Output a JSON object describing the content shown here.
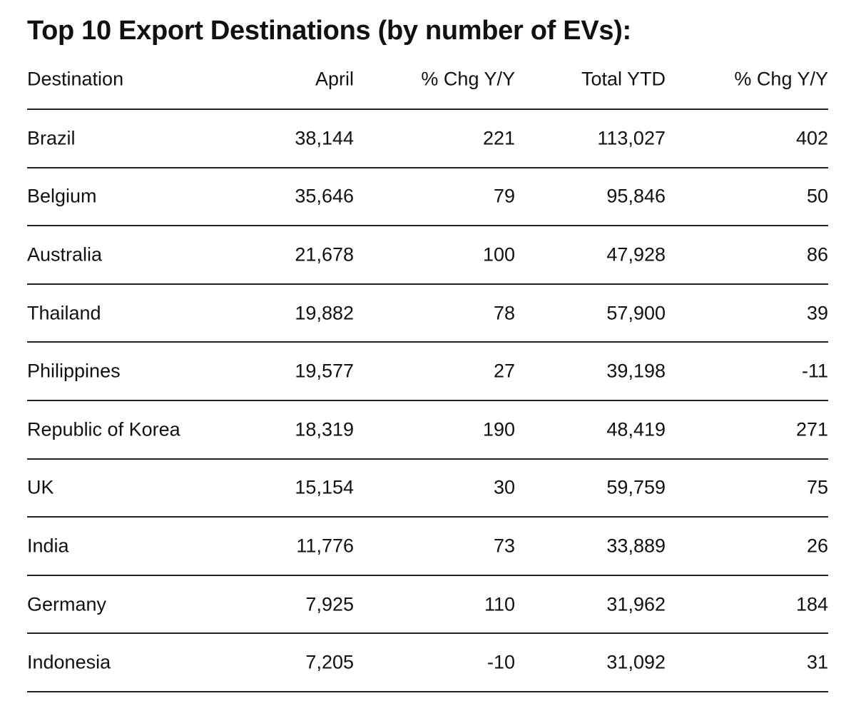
{
  "chart_data": {
    "type": "table",
    "title": "Top 10 Export Destinations (by number of EVs):",
    "columns": [
      "Destination",
      "April",
      "% Chg Y/Y",
      "Total YTD",
      "% Chg Y/Y"
    ],
    "rows": [
      [
        "Brazil",
        "38,144",
        "221",
        "113,027",
        "402"
      ],
      [
        "Belgium",
        "35,646",
        "79",
        "95,846",
        "50"
      ],
      [
        "Australia",
        "21,678",
        "100",
        "47,928",
        "86"
      ],
      [
        "Thailand",
        "19,882",
        "78",
        "57,900",
        "39"
      ],
      [
        "Philippines",
        "19,577",
        "27",
        "39,198",
        "-11"
      ],
      [
        "Republic of Korea",
        "18,319",
        "190",
        "48,419",
        "271"
      ],
      [
        "UK",
        "15,154",
        "30",
        "59,759",
        "75"
      ],
      [
        "India",
        "11,776",
        "73",
        "33,889",
        "26"
      ],
      [
        "Germany",
        "7,925",
        "110",
        "31,962",
        "184"
      ],
      [
        "Indonesia",
        "7,205",
        "-10",
        "31,092",
        "31"
      ]
    ]
  }
}
